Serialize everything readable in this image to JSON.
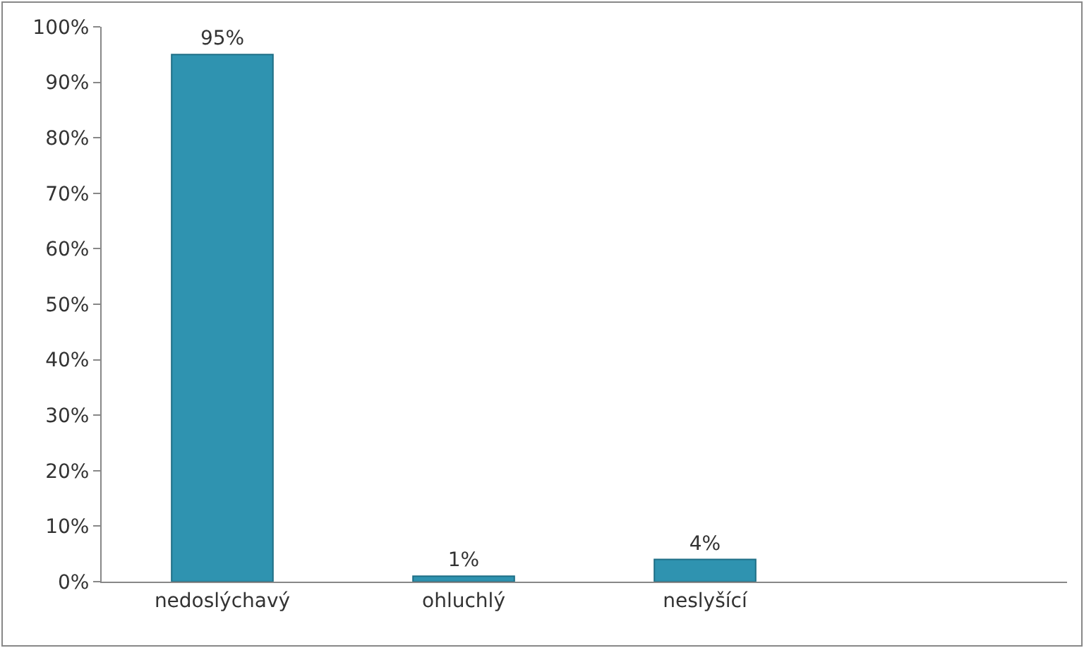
{
  "chart_data": {
    "type": "bar",
    "categories": [
      "nedoslýchavý",
      "ohluchlý",
      "neslyšící",
      null
    ],
    "values": [
      95,
      1,
      4,
      null
    ],
    "value_labels": [
      "95%",
      "1%",
      "4%",
      null
    ],
    "color": "#2f93b0",
    "ylim": [
      0,
      100
    ],
    "yticks": [
      {
        "value": 0,
        "label": "0%"
      },
      {
        "value": 10,
        "label": "10%"
      },
      {
        "value": 20,
        "label": "20%"
      },
      {
        "value": 30,
        "label": "30%"
      },
      {
        "value": 40,
        "label": "40%"
      },
      {
        "value": 50,
        "label": "50%"
      },
      {
        "value": 60,
        "label": "60%"
      },
      {
        "value": 70,
        "label": "70%"
      },
      {
        "value": 80,
        "label": "80%"
      },
      {
        "value": 90,
        "label": "90%"
      },
      {
        "value": 100,
        "label": "100%"
      }
    ],
    "grid": false,
    "legend": false
  }
}
